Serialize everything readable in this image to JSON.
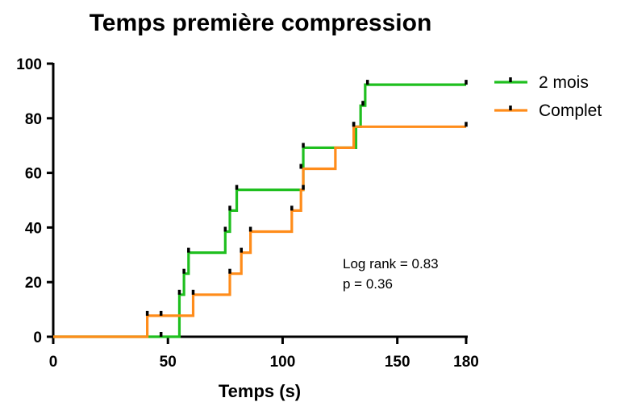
{
  "chart_data": {
    "type": "line",
    "subtype": "kaplan-meier-step",
    "title": "Temps première compression",
    "xlabel": "Temps (s)",
    "ylabel": "",
    "xlim": [
      0,
      180
    ],
    "ylim": [
      0,
      100
    ],
    "xticks": [
      0,
      50,
      100,
      150,
      180
    ],
    "yticks": [
      0,
      20,
      40,
      60,
      80,
      100
    ],
    "grid": false,
    "legend_position": "top-right",
    "annotations": [
      "Log rank = 0.83",
      "p = 0.36"
    ],
    "series": [
      {
        "name": "2 mois",
        "color": "#1fbf1f",
        "steps": [
          [
            0,
            0
          ],
          [
            47,
            0
          ],
          [
            55,
            15.4
          ],
          [
            57,
            23.1
          ],
          [
            59,
            30.8
          ],
          [
            75,
            38.5
          ],
          [
            77,
            46.2
          ],
          [
            80,
            53.8
          ],
          [
            109,
            61.5
          ],
          [
            109,
            69.2
          ],
          [
            132,
            76.9
          ],
          [
            134,
            84.6
          ],
          [
            136,
            92.3
          ],
          [
            180,
            92.3
          ]
        ],
        "censored": [
          [
            47,
            0
          ],
          [
            55,
            15.4
          ],
          [
            57,
            23.1
          ],
          [
            59,
            30.8
          ],
          [
            75,
            38.5
          ],
          [
            77,
            46.2
          ],
          [
            80,
            53.8
          ],
          [
            109,
            69.2
          ],
          [
            131,
            76.9
          ],
          [
            135,
            84.6
          ],
          [
            137,
            92.3
          ],
          [
            180,
            92.3
          ]
        ]
      },
      {
        "name": "Complet",
        "color": "#ff8c1a",
        "steps": [
          [
            0,
            0
          ],
          [
            41,
            0
          ],
          [
            41,
            7.7
          ],
          [
            61,
            15.4
          ],
          [
            77,
            23.1
          ],
          [
            82,
            30.8
          ],
          [
            86,
            38.5
          ],
          [
            104,
            46.2
          ],
          [
            108,
            53.8
          ],
          [
            109,
            61.5
          ],
          [
            123,
            69.2
          ],
          [
            131,
            76.9
          ],
          [
            180,
            76.9
          ]
        ],
        "censored": [
          [
            41,
            7.7
          ],
          [
            47,
            7.7
          ],
          [
            61,
            15.4
          ],
          [
            77,
            23.1
          ],
          [
            82,
            30.8
          ],
          [
            86,
            38.5
          ],
          [
            104,
            46.2
          ],
          [
            108,
            61.5
          ],
          [
            109,
            53.8
          ],
          [
            131,
            76.9
          ],
          [
            180,
            76.9
          ]
        ]
      }
    ]
  }
}
